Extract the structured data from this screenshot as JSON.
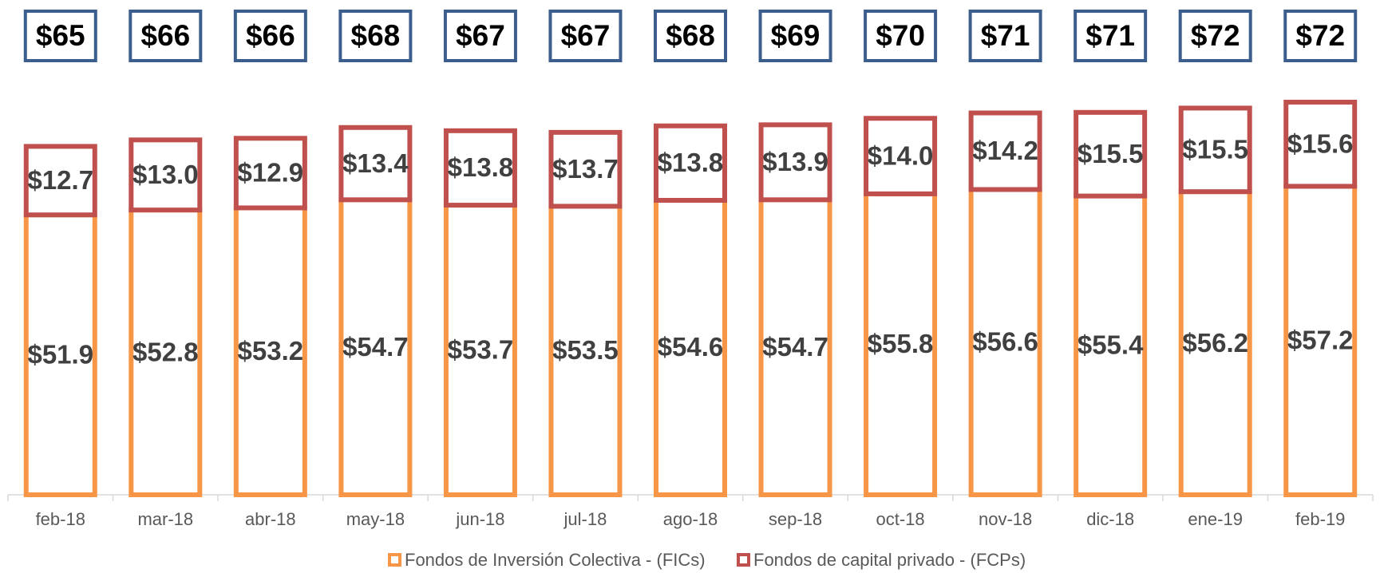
{
  "chart_data": {
    "type": "stacked_bar",
    "categories": [
      "feb-18",
      "mar-18",
      "abr-18",
      "may-18",
      "jun-18",
      "jul-18",
      "ago-18",
      "sep-18",
      "oct-18",
      "nov-18",
      "dic-18",
      "ene-19",
      "feb-19"
    ],
    "series": [
      {
        "name": "Fondos de Inversión Colectiva - (FICs)",
        "color": "#f79646",
        "values": [
          51.9,
          52.8,
          53.2,
          54.7,
          53.7,
          53.5,
          54.6,
          54.7,
          55.8,
          56.6,
          55.4,
          56.2,
          57.2
        ],
        "value_labels": [
          "$51.9",
          "$52.8",
          "$53.2",
          "$54.7",
          "$53.7",
          "$53.5",
          "$54.6",
          "$54.7",
          "$55.8",
          "$56.6",
          "$55.4",
          "$56.2",
          "$57.2"
        ]
      },
      {
        "name": "Fondos de capital privado - (FCPs)",
        "color": "#c0504d",
        "values": [
          12.7,
          13.0,
          12.9,
          13.4,
          13.8,
          13.7,
          13.8,
          13.9,
          14.0,
          14.2,
          15.5,
          15.5,
          15.6
        ],
        "value_labels": [
          "$12.7",
          "$13.0",
          "$12.9",
          "$13.4",
          "$13.8",
          "$13.7",
          "$13.8",
          "$13.9",
          "$14.0",
          "$14.2",
          "$15.5",
          "$15.5",
          "$15.6"
        ]
      }
    ],
    "totals": {
      "color": "#3b5e8c",
      "values": [
        65,
        66,
        66,
        68,
        67,
        67,
        68,
        69,
        70,
        71,
        71,
        72,
        72
      ],
      "value_labels": [
        "$65",
        "$66",
        "$66",
        "$68",
        "$67",
        "$67",
        "$68",
        "$69",
        "$70",
        "$71",
        "$71",
        "$72",
        "$72"
      ]
    },
    "legend": "bottom"
  }
}
